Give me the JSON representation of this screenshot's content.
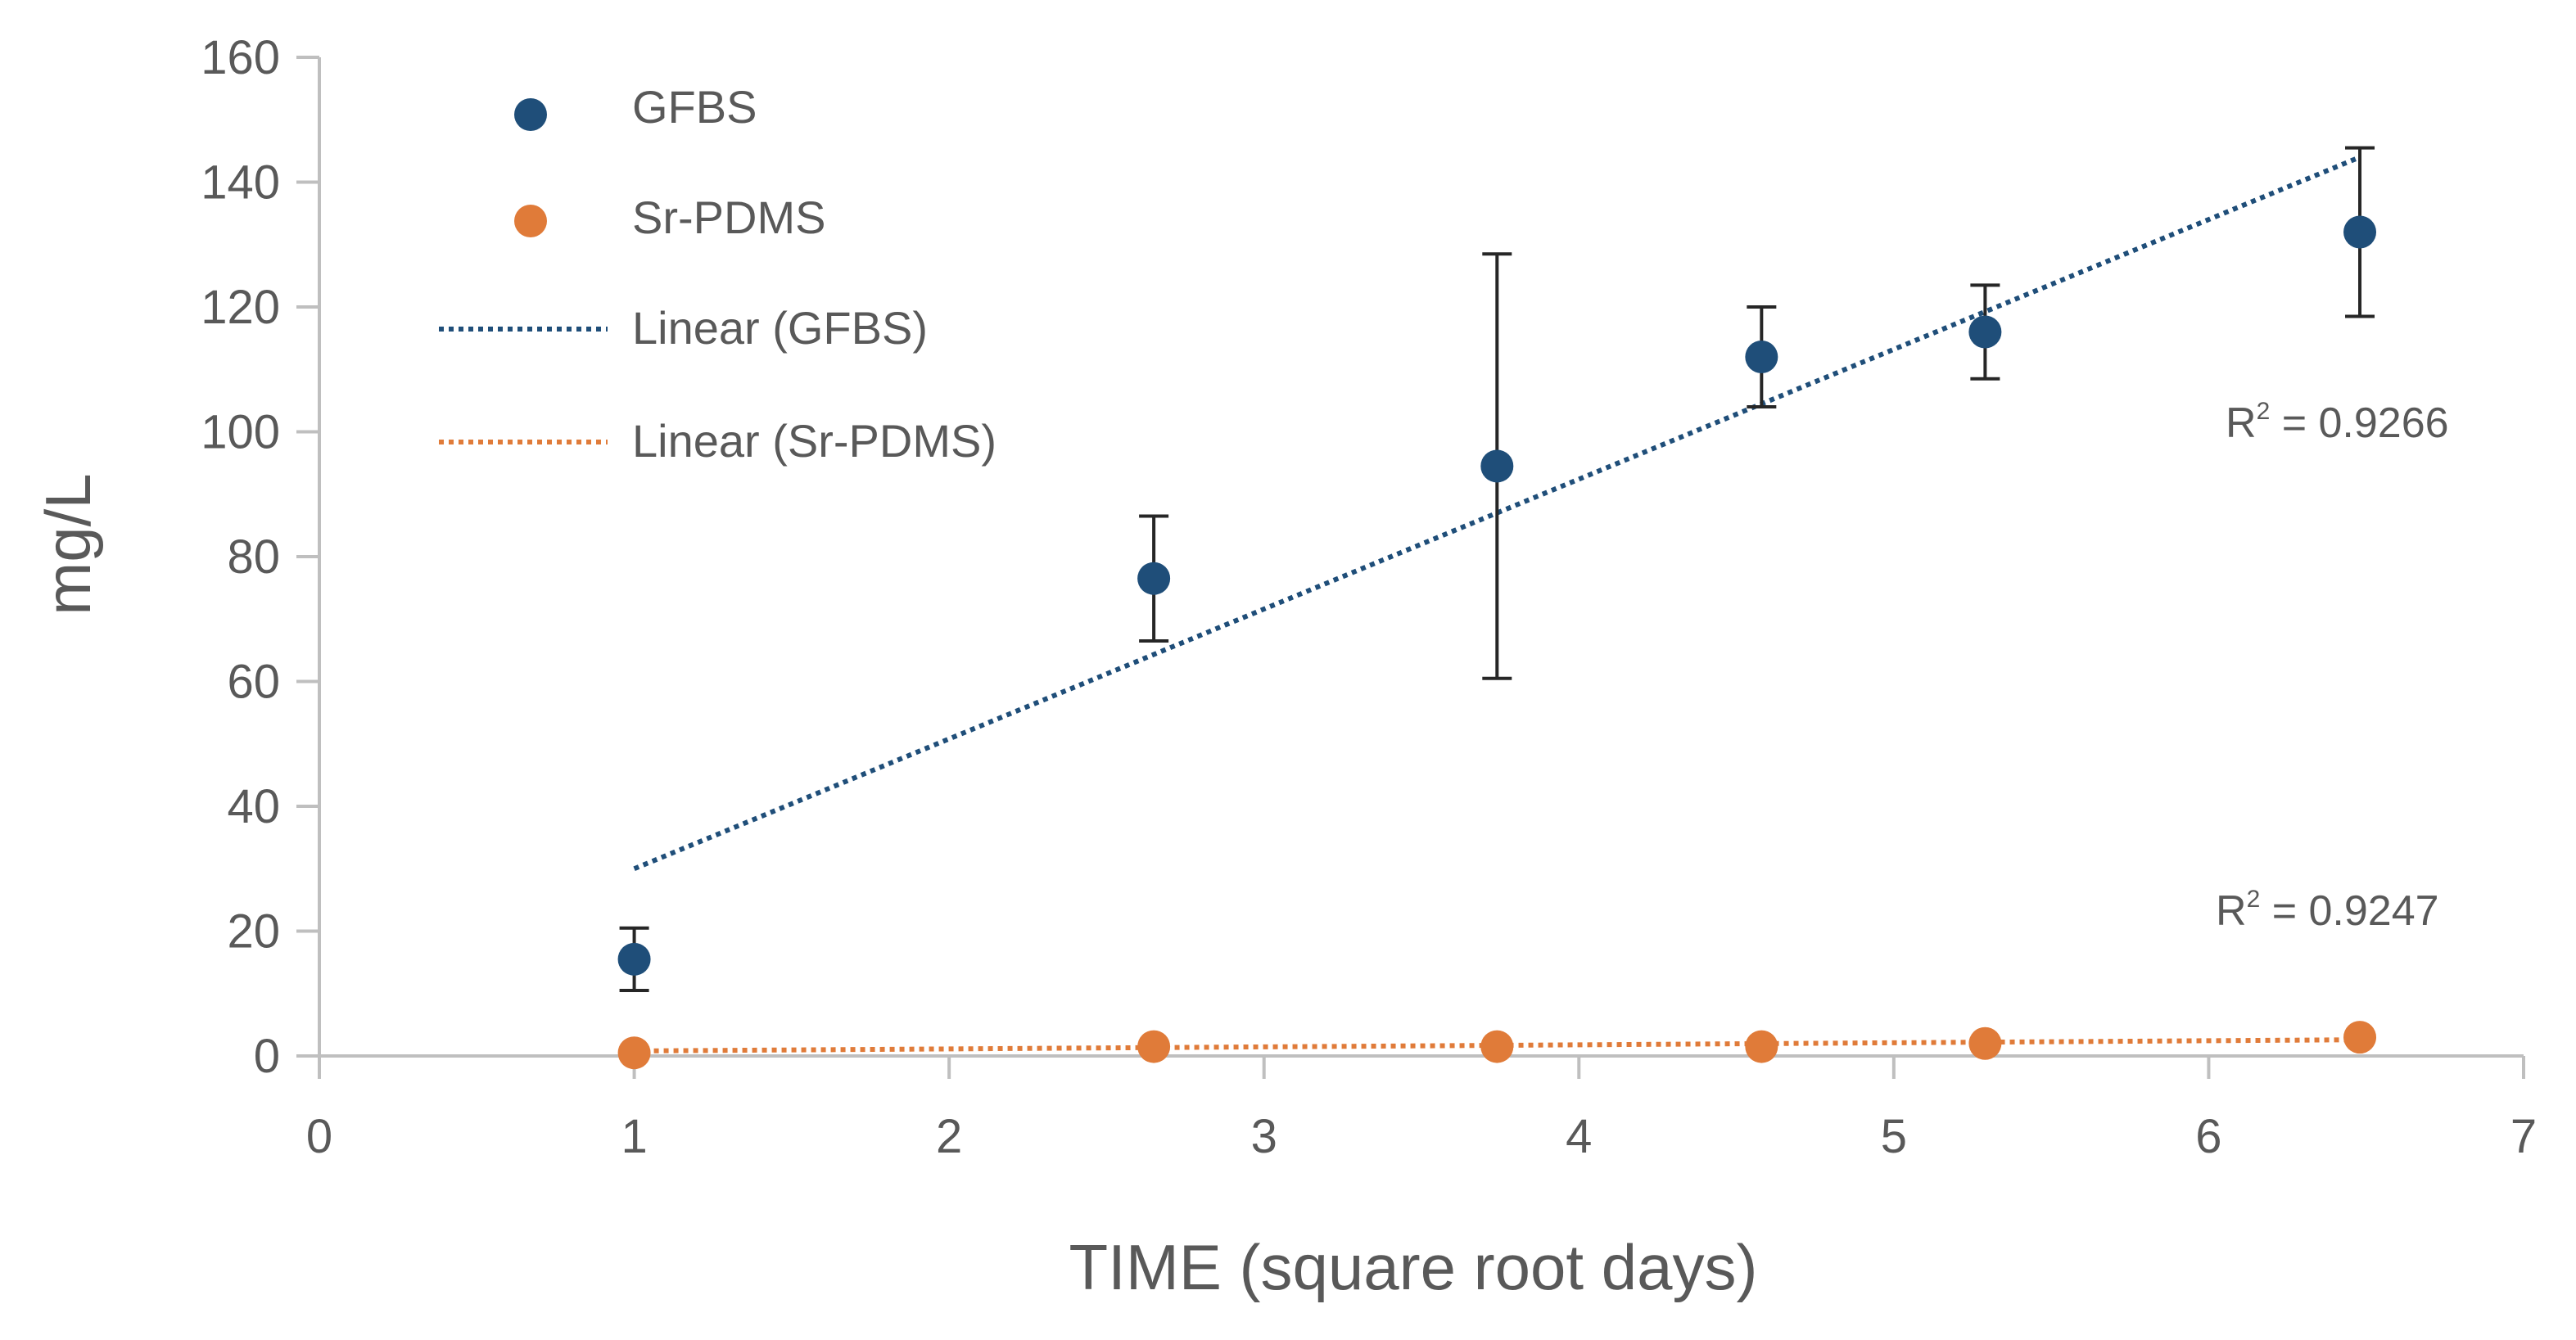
{
  "chart_data": {
    "type": "scatter",
    "xlabel": "TIME (square root days)",
    "ylabel": "mg/L",
    "xlim": [
      0,
      7
    ],
    "ylim": [
      0,
      160
    ],
    "x_ticks": [
      "0",
      "1",
      "2",
      "3",
      "4",
      "5",
      "6",
      "7"
    ],
    "y_ticks": [
      "0",
      "20",
      "40",
      "60",
      "80",
      "100",
      "120",
      "140",
      "160"
    ],
    "grid": false,
    "legend_position": "top-left",
    "series": [
      {
        "name": "GFBS",
        "color": "#1f4e79",
        "x": [
          1,
          2.65,
          3.74,
          4.58,
          5.29,
          6.48
        ],
        "y": [
          15.5,
          76.5,
          94.5,
          112,
          116,
          132
        ],
        "error": [
          5,
          10,
          34,
          8,
          7.5,
          13.5
        ]
      },
      {
        "name": "Sr-PDMS",
        "color": "#e07b39",
        "x": [
          1,
          2.65,
          3.74,
          4.58,
          5.29,
          6.48
        ],
        "y": [
          0.5,
          1.5,
          1.5,
          1.5,
          2,
          3
        ]
      }
    ],
    "trendlines": [
      {
        "name": "Linear (GFBS)",
        "color": "#1f4e79",
        "x": [
          1,
          6.48
        ],
        "y": [
          30,
          144
        ],
        "r2_label": "R",
        "r2_sup": "2",
        "r2_value": " = 0.9266"
      },
      {
        "name": "Linear (Sr-PDMS)",
        "color": "#e07b39",
        "x": [
          1,
          6.48
        ],
        "y": [
          0.8,
          2.6
        ],
        "r2_label": "R",
        "r2_sup": "2",
        "r2_value": " = 0.9247"
      }
    ],
    "legend": [
      "GFBS",
      "Sr-PDMS",
      "Linear (GFBS)",
      "Linear (Sr-PDMS)"
    ]
  }
}
